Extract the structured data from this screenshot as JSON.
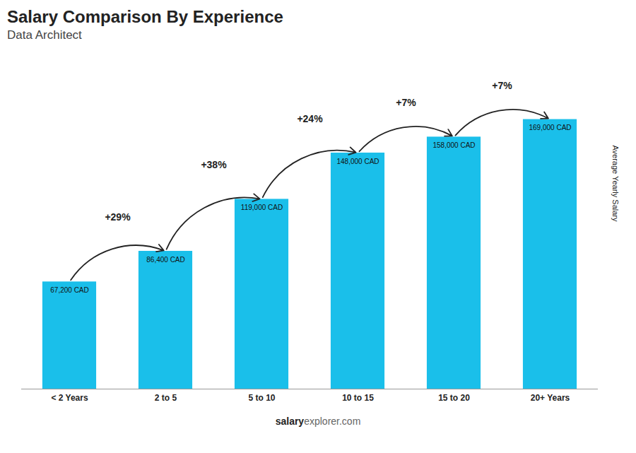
{
  "chart_data": {
    "type": "bar",
    "title": "Salary Comparison By Experience",
    "subtitle": "Data Architect",
    "ylabel": "Average Yearly Salary",
    "categories": [
      "< 2 Years",
      "2 to 5",
      "5 to 10",
      "10 to 15",
      "15 to 20",
      "20+ Years"
    ],
    "values": [
      67200,
      86400,
      119000,
      148000,
      158000,
      169000
    ],
    "value_labels": [
      "67,200 CAD",
      "86,400 CAD",
      "119,000 CAD",
      "148,000 CAD",
      "158,000 CAD",
      "169,000 CAD"
    ],
    "data_labels": true,
    "color": "#1abfea",
    "ylim": [
      0,
      210000
    ],
    "tick_labels": "x",
    "grid": false,
    "annotations": [
      {
        "text": "+29%",
        "from": "< 2 Years",
        "to": "2 to 5"
      },
      {
        "text": "+38%",
        "from": "2 to 5",
        "to": "5 to 10"
      },
      {
        "text": "+24%",
        "from": "5 to 10",
        "to": "10 to 15"
      },
      {
        "text": "+7%",
        "from": "10 to 15",
        "to": "15 to 20"
      },
      {
        "text": "+7%",
        "from": "15 to 20",
        "to": "20+ Years"
      }
    ],
    "footer": [
      "salary",
      "explorer.com"
    ]
  }
}
